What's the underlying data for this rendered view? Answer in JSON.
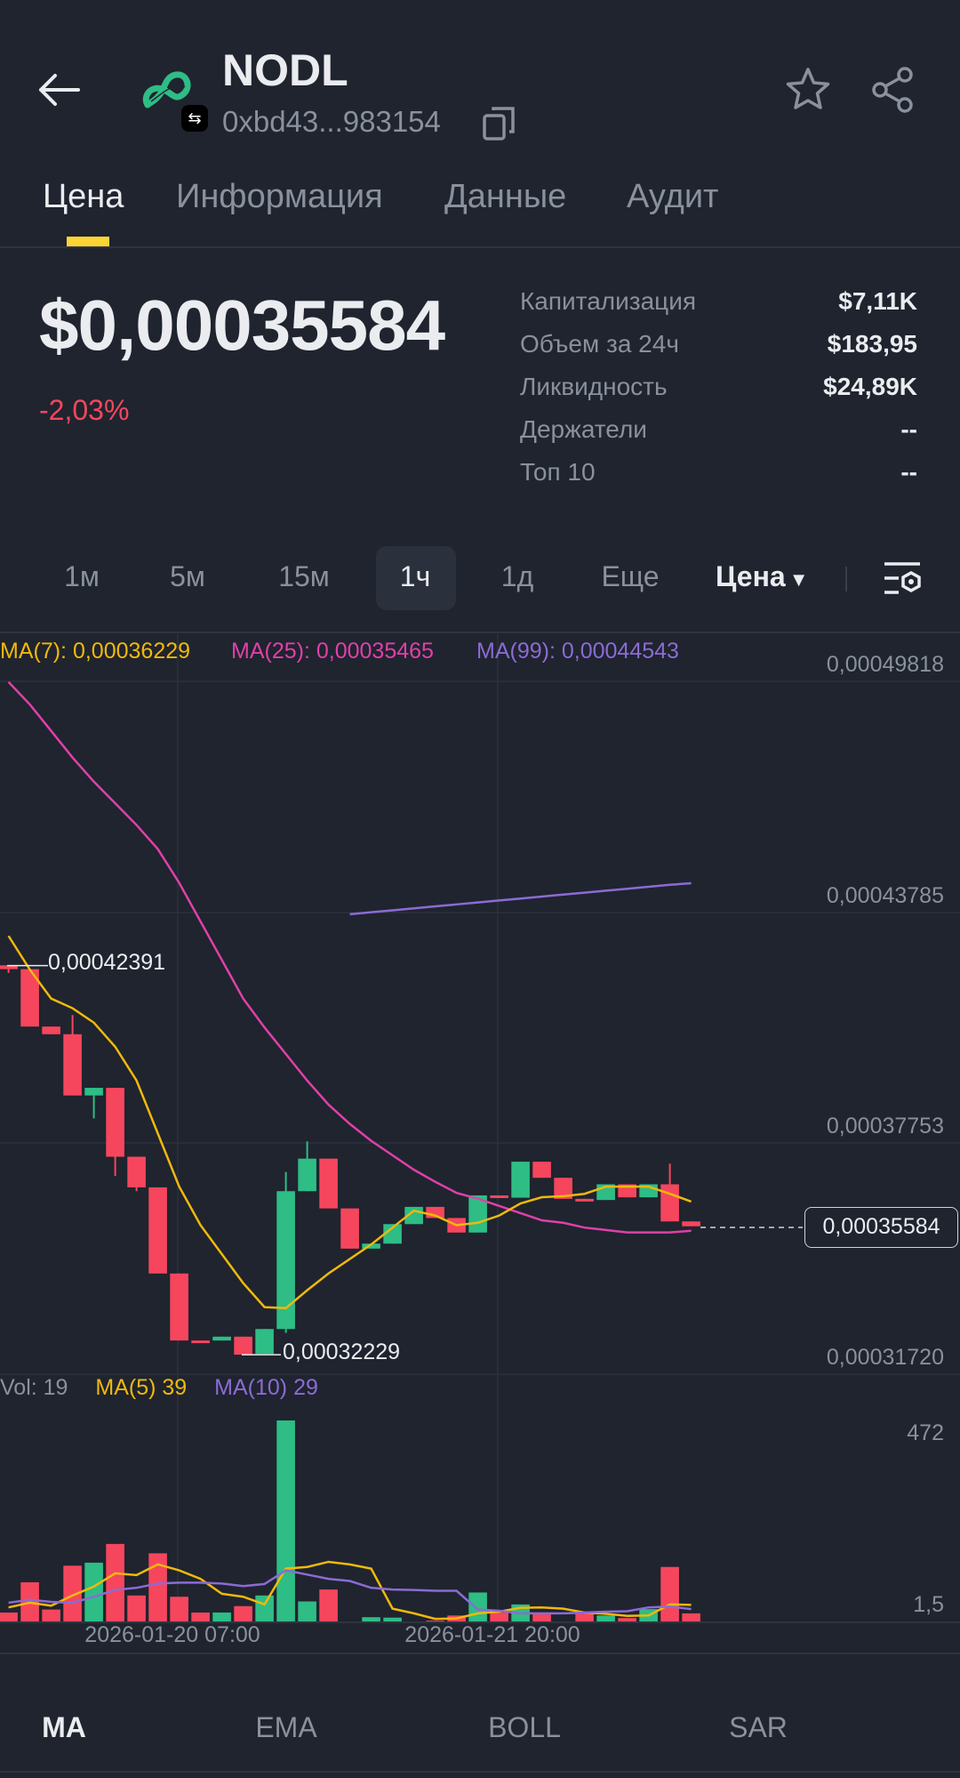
{
  "header": {
    "title": "NODL",
    "address": "0xbd43...983154",
    "icons": [
      "back-arrow-icon",
      "token-logo",
      "chain-badge-icon",
      "copy-icon",
      "star-icon",
      "share-icon"
    ]
  },
  "tabs": [
    {
      "label": "Цена",
      "active": true
    },
    {
      "label": "Информация",
      "active": false
    },
    {
      "label": "Данные",
      "active": false
    },
    {
      "label": "Аудит",
      "active": false
    }
  ],
  "price": {
    "value": "$0,00035584",
    "change": "-2,03%"
  },
  "stats": [
    {
      "label": "Капитализация",
      "value": "$7,11K"
    },
    {
      "label": "Объем за 24ч",
      "value": "$183,95"
    },
    {
      "label": "Ликвидность",
      "value": "$24,89K"
    },
    {
      "label": "Держатели",
      "value": "--"
    },
    {
      "label": "Топ 10",
      "value": "--"
    }
  ],
  "intervals": [
    {
      "label": "1м"
    },
    {
      "label": "5м"
    },
    {
      "label": "15м"
    },
    {
      "label": "1ч",
      "selected": true
    },
    {
      "label": "1д"
    },
    {
      "label": "Еще"
    }
  ],
  "chart_type_select": "Цена",
  "colors": {
    "up": "#2ebd85",
    "down": "#f6465d",
    "ma7": "#f0b90b",
    "ma25": "#e040a8",
    "ma99": "#8c6bd4",
    "accent": "#fcd535"
  },
  "chart_data": {
    "type": "candlestick",
    "legend": {
      "ma7": "MA(7): 0,00036229",
      "ma25": "MA(25): 0,00035465",
      "ma99": "MA(99): 0,00044543"
    },
    "y_ticks": [
      "0,00049818",
      "0,00043785",
      "0,00037753",
      "0,00031720"
    ],
    "ylim": [
      0.0003172,
      0.00049818
    ],
    "x_ticks": [
      "2026-01-20 07:00",
      "2026-01-21 20:00"
    ],
    "high_label": "0,00042391",
    "low_label": "0,00032229",
    "current_price_label": "0,00035584",
    "candles": [
      [
        0.000424,
        0.000424,
        0.000422,
        0.000423
      ],
      [
        0.000423,
        0.000423,
        0.000408,
        0.000408
      ],
      [
        0.000408,
        0.000408,
        0.000406,
        0.000406
      ],
      [
        0.000406,
        0.000411,
        0.00039,
        0.00039
      ],
      [
        0.00039,
        0.000392,
        0.000384,
        0.000392
      ],
      [
        0.000392,
        0.000392,
        0.000369,
        0.000374
      ],
      [
        0.000374,
        0.000374,
        0.000365,
        0.000366
      ],
      [
        0.000366,
        0.000366,
        0.0003435,
        0.0003435
      ],
      [
        0.0003435,
        0.0003435,
        0.000326,
        0.000326
      ],
      [
        0.000326,
        0.000326,
        0.0003255,
        0.0003255
      ],
      [
        0.000326,
        0.000327,
        0.000326,
        0.000327
      ],
      [
        0.000327,
        0.000327,
        0.00032229,
        0.0003223
      ],
      [
        0.0003225,
        0.000329,
        0.0003225,
        0.000329
      ],
      [
        0.000329,
        0.00037,
        0.000328,
        0.000365
      ],
      [
        0.000365,
        0.000378,
        0.000365,
        0.0003735
      ],
      [
        0.0003735,
        0.0003735,
        0.0003605,
        0.0003605
      ],
      [
        0.0003605,
        0.0003605,
        0.00035,
        0.00035
      ],
      [
        0.00035,
        0.0003513,
        0.00035,
        0.0003513
      ],
      [
        0.0003513,
        0.0003564,
        0.0003513,
        0.0003564
      ],
      [
        0.0003564,
        0.0003609,
        0.0003564,
        0.0003609
      ],
      [
        0.0003609,
        0.0003609,
        0.000358,
        0.000358
      ],
      [
        0.000358,
        0.000358,
        0.0003542,
        0.0003542
      ],
      [
        0.0003542,
        0.0003639,
        0.0003542,
        0.0003639
      ],
      [
        0.0003639,
        0.0003639,
        0.0003633,
        0.0003633
      ],
      [
        0.0003633,
        0.0003727,
        0.0003633,
        0.0003727
      ],
      [
        0.0003727,
        0.0003727,
        0.0003685,
        0.0003685
      ],
      [
        0.0003685,
        0.0003685,
        0.000363,
        0.000363
      ],
      [
        0.000363,
        0.000363,
        0.0003627,
        0.0003627
      ],
      [
        0.0003627,
        0.0003668,
        0.0003627,
        0.0003668
      ],
      [
        0.0003668,
        0.0003668,
        0.0003634,
        0.0003634
      ],
      [
        0.0003634,
        0.0003668,
        0.0003634,
        0.0003668
      ],
      [
        0.0003668,
        0.0003722,
        0.0003571,
        0.0003571
      ],
      [
        0.0003571,
        0.0003571,
        0.00035584,
        0.00035584
      ]
    ],
    "candle_fields": [
      "open",
      "high",
      "low",
      "close"
    ],
    "ma7": [
      0.00043168,
      0.00042287,
      0.00041531,
      0.00041279,
      0.00040902,
      0.00040272,
      0.0003939,
      0.00038005,
      0.0003662,
      0.00035612,
      0.00034856,
      0.000341,
      0.00033471,
      0.00033446,
      0.00033912,
      0.00034352,
      0.0003473,
      0.00035108,
      0.00035549,
      0.0003599,
      0.00035864,
      0.00035612,
      0.00035675,
      0.00035864,
      0.00036179,
      0.00036343,
      0.00036368,
      0.00036431,
      0.0003662,
      0.0003662,
      0.0003662,
      0.00036431,
      0.00036229
    ],
    "ma25": [
      0.000498,
      0.00049213,
      0.00048521,
      0.00047828,
      0.00047198,
      0.00046632,
      0.00046065,
      0.00045435,
      0.00044553,
      0.00043546,
      0.00042539,
      0.00041531,
      0.00040776,
      0.00040083,
      0.0003939,
      0.0003876,
      0.00038257,
      0.00037816,
      0.00037438,
      0.0003706,
      0.00036746,
      0.00036456,
      0.00036305,
      0.00036116,
      0.00035927,
      0.00035738,
      0.00035675,
      0.00035549,
      0.00035486,
      0.00035423,
      0.00035423,
      0.00035423,
      0.00035465
    ],
    "ma99": [
      null,
      null,
      null,
      null,
      null,
      null,
      null,
      null,
      null,
      null,
      null,
      null,
      null,
      null,
      null,
      null,
      0.00043735,
      0.00043786,
      0.00043837,
      0.00043888,
      0.0004394,
      0.00043991,
      0.00044042,
      0.00044093,
      0.00044144,
      0.00044196,
      0.00044247,
      0.00044298,
      0.00044349,
      0.000444,
      0.00044452,
      0.00044503,
      0.00044543
    ],
    "volume": {
      "legend": {
        "vol": "Vol: 19",
        "ma5": "MA(5) 39",
        "ma10": "MA(10) 29"
      },
      "y_ticks": [
        "472",
        "1,5"
      ],
      "values": [
        21,
        92,
        28,
        131,
        138,
        182,
        61,
        160,
        58,
        21,
        21,
        36,
        61,
        472,
        47,
        75,
        0,
        10,
        9,
        0,
        2,
        14,
        68,
        21,
        40,
        18,
        0,
        21,
        14,
        8,
        29,
        128,
        19
      ],
      "ma5": [
        33,
        44,
        37,
        61,
        82,
        113,
        109,
        134,
        120,
        100,
        65,
        58,
        40,
        124,
        128,
        140,
        134,
        124,
        30,
        19,
        6,
        7,
        19,
        23,
        32,
        33,
        30,
        21,
        18,
        13,
        14,
        40,
        39
      ],
      "ma10": [
        44,
        51,
        46,
        44,
        58,
        74,
        79,
        89,
        91,
        91,
        89,
        83,
        88,
        120,
        110,
        100,
        95,
        79,
        75,
        74,
        72,
        72,
        28,
        25,
        19,
        19,
        19,
        21,
        23,
        24,
        33,
        35,
        29
      ]
    }
  },
  "indicator_tabs": [
    {
      "label": "MA",
      "active": true
    },
    {
      "label": "EMA"
    },
    {
      "label": "BOLL"
    },
    {
      "label": "SAR"
    }
  ]
}
